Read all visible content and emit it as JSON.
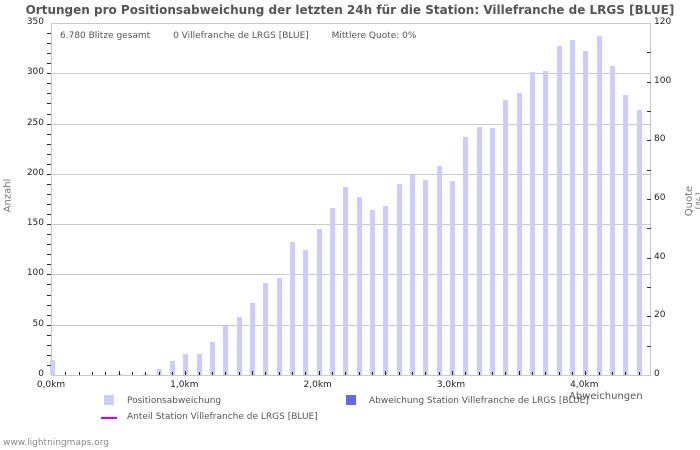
{
  "chart_data": {
    "type": "bar",
    "title": "Ortungen pro Positionsabweichung der letzten 24h für die Station: Villefranche de LRGS [BLUE]",
    "xlabel": "Abweichungen",
    "ylabel": "Anzahl",
    "ylabel_right": "Quote [%]",
    "ylim": [
      0,
      350
    ],
    "ylim_right": [
      0,
      120
    ],
    "xlim_km": [
      0,
      4.5
    ],
    "y_ticks": [
      0,
      50,
      100,
      150,
      200,
      250,
      300,
      350
    ],
    "y_ticks_right": [
      0,
      20,
      40,
      60,
      80,
      100,
      120
    ],
    "x_tick_labels": [
      "0,0km",
      "1,0km",
      "2,0km",
      "3,0km",
      "4,0km"
    ],
    "grid": true,
    "legend_position": "bottom",
    "categories": [
      "0.0",
      "0.1",
      "0.2",
      "0.3",
      "0.4",
      "0.5",
      "0.6",
      "0.7",
      "0.8",
      "0.9",
      "1.0",
      "1.1",
      "1.2",
      "1.3",
      "1.4",
      "1.5",
      "1.6",
      "1.7",
      "1.8",
      "1.9",
      "2.0",
      "2.1",
      "2.2",
      "2.3",
      "2.4",
      "2.5",
      "2.6",
      "2.7",
      "2.8",
      "2.9",
      "3.0",
      "3.1",
      "3.2",
      "3.3",
      "3.4",
      "3.5",
      "3.6",
      "3.7",
      "3.8",
      "3.9",
      "4.0",
      "4.1",
      "4.2",
      "4.3",
      "4.4"
    ],
    "series": [
      {
        "name": "Positionsabweichung",
        "color": "#ccccff",
        "values": [
          15,
          0,
          0,
          0,
          0,
          1,
          0,
          1,
          6,
          14,
          21,
          21,
          33,
          49,
          58,
          72,
          91,
          96,
          132,
          124,
          145,
          166,
          187,
          177,
          164,
          168,
          190,
          199,
          194,
          208,
          193,
          237,
          247,
          246,
          273,
          280,
          301,
          302,
          327,
          333,
          322,
          337,
          307,
          278,
          263
        ]
      },
      {
        "name": "Abweichung Station Villefranche de LRGS [BLUE]",
        "color": "#6666ff",
        "values": [
          0,
          0,
          0,
          0,
          0,
          0,
          0,
          0,
          0,
          0,
          0,
          0,
          0,
          0,
          0,
          0,
          0,
          0,
          0,
          0,
          0,
          0,
          0,
          0,
          0,
          0,
          0,
          0,
          0,
          0,
          0,
          0,
          0,
          0,
          0,
          0,
          0,
          0,
          0,
          0,
          0,
          0,
          0,
          0,
          0
        ]
      },
      {
        "name": "Anteil Station Villefranche de LRGS [BLUE]",
        "color": "#cc00ff",
        "type": "line",
        "values": []
      }
    ]
  },
  "header": {
    "title": "Ortungen pro Positionsabweichung der letzten 24h für die Station: Villefranche de LRGS [BLUE]"
  },
  "summary": {
    "total": "6.780 Blitze gesamt",
    "station": "0 Villefranche de LRGS [BLUE]",
    "quote": "Mittlere Quote: 0%"
  },
  "axes": {
    "left_label": "Anzahl",
    "right_label": "Quote [%]",
    "x_label": "Abweichungen",
    "left_ticks": [
      "0",
      "50",
      "100",
      "150",
      "200",
      "250",
      "300",
      "350"
    ],
    "right_ticks": [
      "0",
      "20",
      "40",
      "60",
      "80",
      "100",
      "120"
    ],
    "x_ticks": [
      "0,0km",
      "1,0km",
      "2,0km",
      "3,0km",
      "4,0km"
    ]
  },
  "legend": {
    "item1": "Positionsabweichung",
    "item2": "Abweichung Station Villefranche de LRGS [BLUE]",
    "item3": "Anteil Station Villefranche de LRGS [BLUE]"
  },
  "footer": {
    "credit": "www.lightningmaps.org"
  }
}
